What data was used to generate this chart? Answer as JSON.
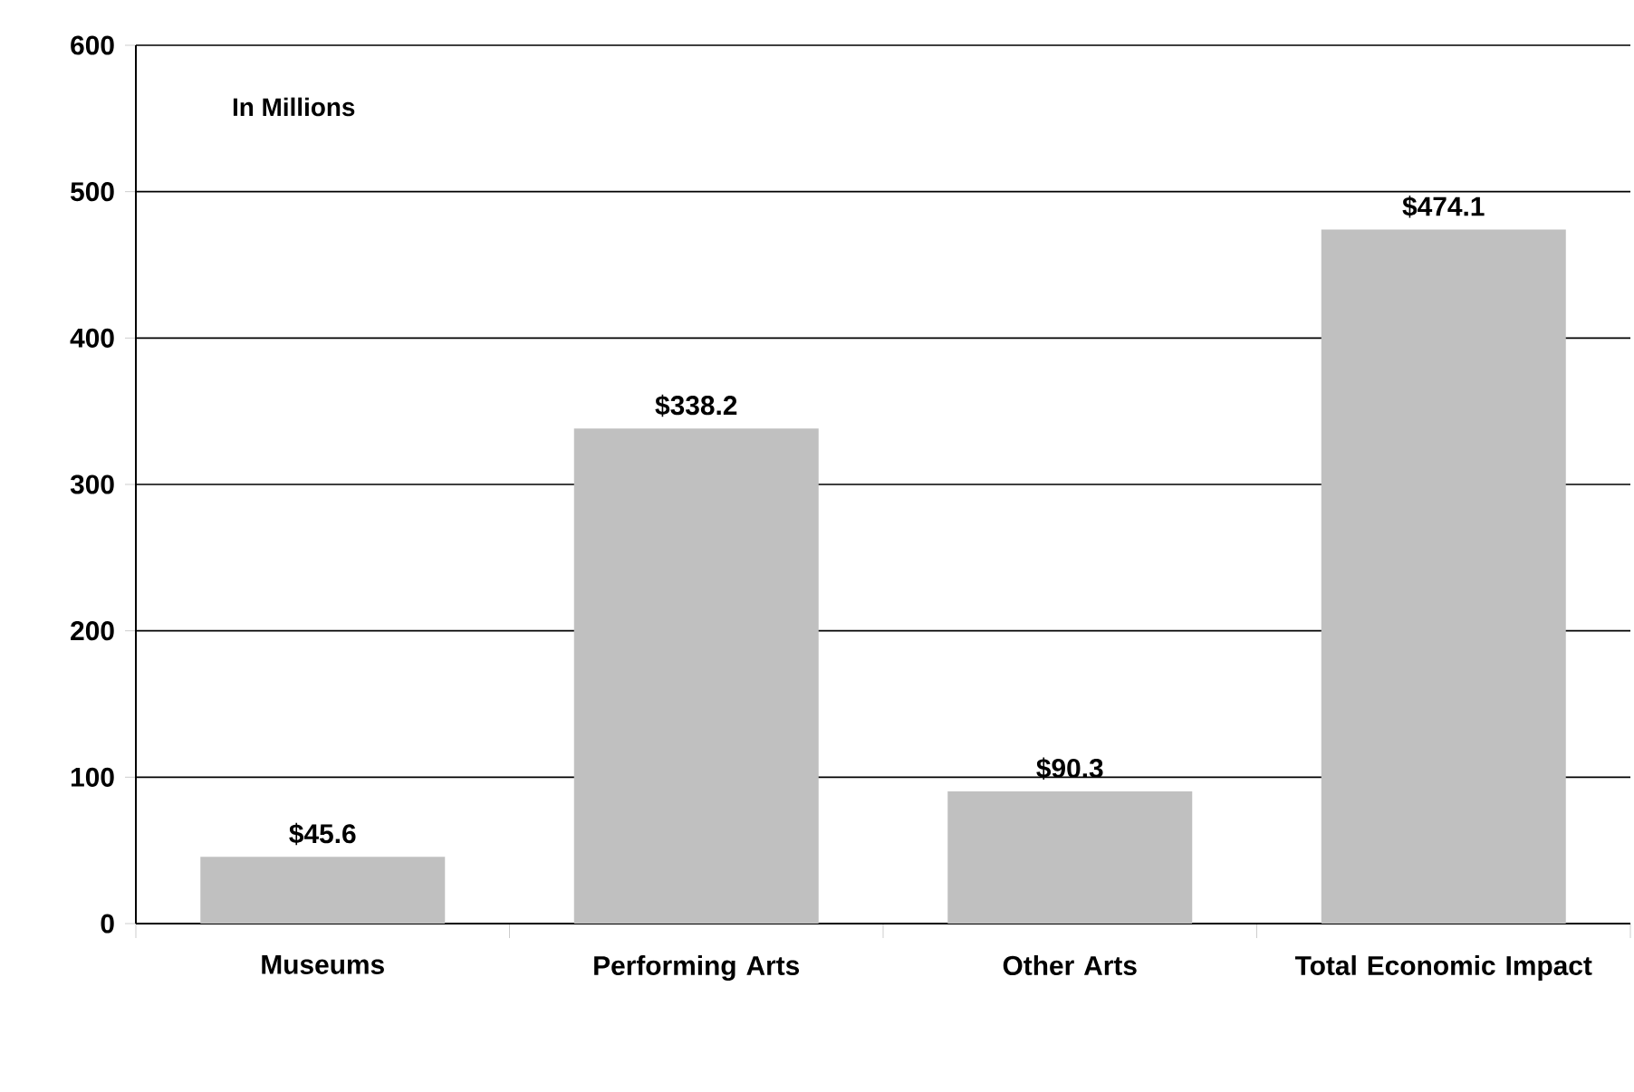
{
  "chart_data": {
    "type": "bar",
    "categories": [
      "Museums",
      "Performing Arts",
      "Other Arts",
      "Total Economic Impact"
    ],
    "values": [
      45.6,
      338.2,
      90.3,
      474.1
    ],
    "value_labels": [
      "$45.6",
      "$338.2",
      "$90.3",
      "$474.1"
    ],
    "color": "#c0c0c0",
    "ylim": [
      0,
      600
    ],
    "yticks": [
      0,
      100,
      200,
      300,
      400,
      500,
      600
    ],
    "grid": "y",
    "annotations": [
      "In Millions"
    ]
  }
}
